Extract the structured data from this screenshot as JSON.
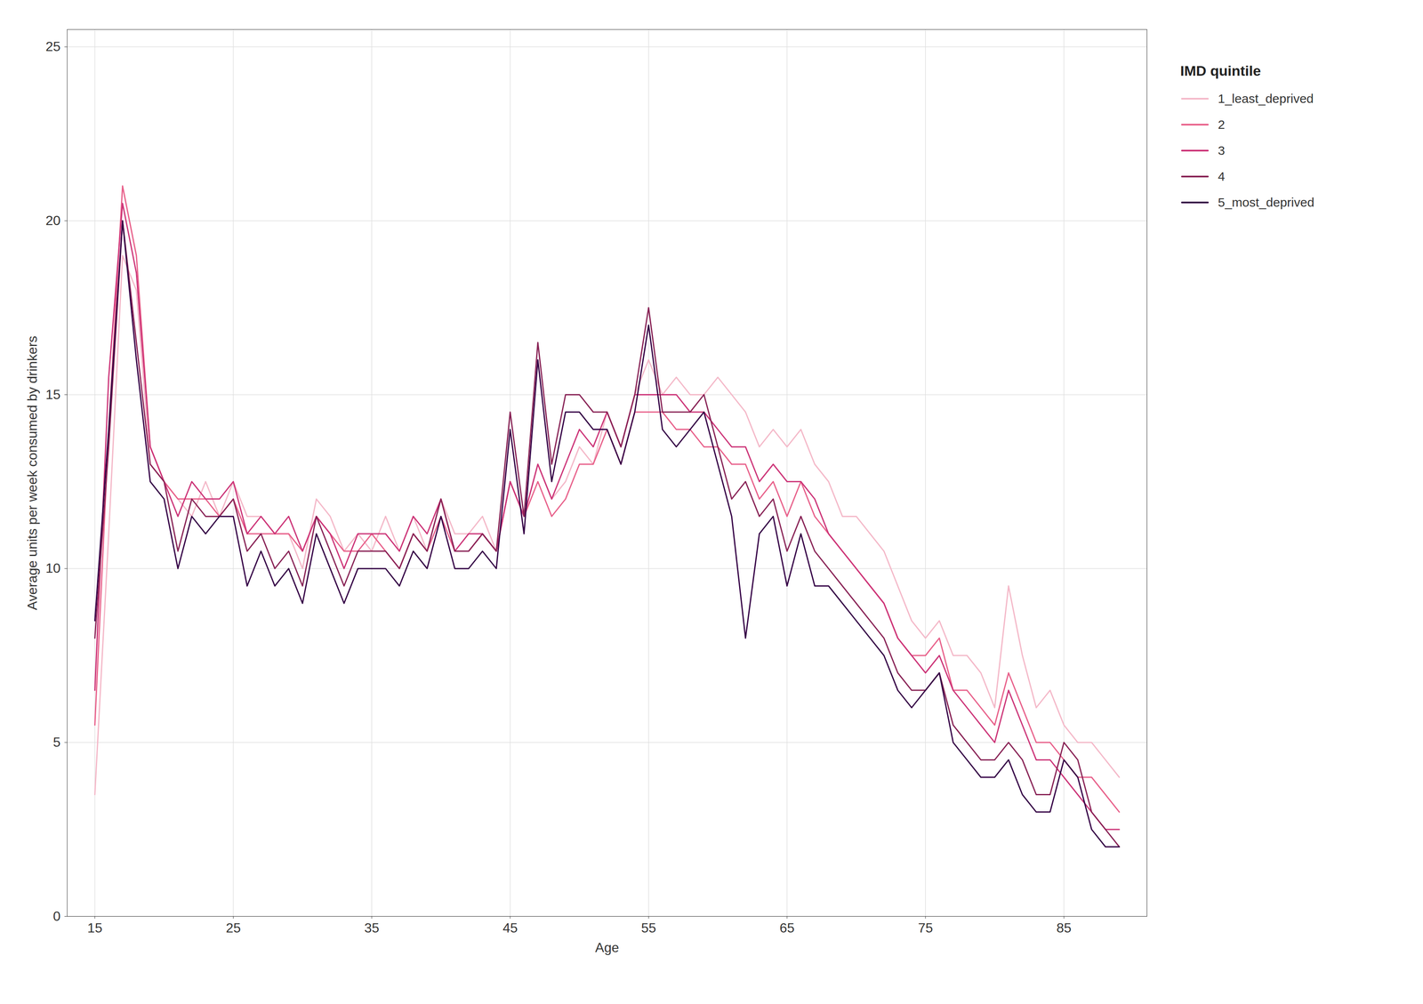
{
  "chart_data": {
    "type": "line",
    "xlabel": "Age",
    "ylabel": "Average units per week consumed by drinkers",
    "legend_title": "IMD quintile",
    "xlim": [
      13,
      91
    ],
    "ylim": [
      0,
      25.5
    ],
    "xticks": [
      15,
      25,
      35,
      45,
      55,
      65,
      75,
      85
    ],
    "yticks": [
      0,
      5,
      10,
      15,
      20,
      25
    ],
    "grid": true,
    "legend": "right",
    "x": [
      15,
      16,
      17,
      18,
      19,
      20,
      21,
      22,
      23,
      24,
      25,
      26,
      27,
      28,
      29,
      30,
      31,
      32,
      33,
      34,
      35,
      36,
      37,
      38,
      39,
      40,
      41,
      42,
      43,
      44,
      45,
      46,
      47,
      48,
      49,
      50,
      51,
      52,
      53,
      54,
      55,
      56,
      57,
      58,
      59,
      60,
      61,
      62,
      63,
      64,
      65,
      66,
      67,
      68,
      69,
      70,
      71,
      72,
      73,
      74,
      75,
      76,
      77,
      78,
      79,
      80,
      81,
      82,
      83,
      84,
      85,
      86,
      87,
      88,
      89
    ],
    "series": [
      {
        "name": "1_least_deprived",
        "color": "#f4b8c8",
        "values": [
          3.5,
          11.0,
          19.0,
          18.0,
          13.0,
          12.5,
          12.0,
          11.5,
          12.5,
          11.5,
          12.5,
          11.5,
          11.5,
          11.0,
          11.0,
          10.0,
          12.0,
          11.5,
          10.5,
          11.0,
          10.5,
          11.5,
          10.5,
          11.5,
          10.5,
          12.0,
          11.0,
          11.0,
          11.5,
          10.5,
          12.5,
          11.5,
          13.0,
          12.0,
          12.5,
          13.5,
          13.0,
          14.5,
          13.5,
          15.0,
          16.0,
          15.0,
          15.5,
          15.0,
          15.0,
          15.5,
          15.0,
          14.5,
          13.5,
          14.0,
          13.5,
          14.0,
          13.0,
          12.5,
          11.5,
          11.5,
          11.0,
          10.5,
          9.5,
          8.5,
          8.0,
          8.5,
          7.5,
          7.5,
          7.0,
          6.0,
          9.5,
          7.5,
          6.0,
          6.5,
          5.5,
          5.0,
          5.0,
          4.5,
          4.0
        ]
      },
      {
        "name": "2",
        "color": "#e8608a",
        "values": [
          5.5,
          14.0,
          21.0,
          19.0,
          13.5,
          12.5,
          12.0,
          12.0,
          12.0,
          11.5,
          12.0,
          11.0,
          11.0,
          11.0,
          11.0,
          10.5,
          11.5,
          11.0,
          10.5,
          10.5,
          11.0,
          10.5,
          10.0,
          11.0,
          10.5,
          11.5,
          10.5,
          10.5,
          11.0,
          10.5,
          12.5,
          11.5,
          12.5,
          11.5,
          12.0,
          13.0,
          13.0,
          14.0,
          13.0,
          14.5,
          14.5,
          14.5,
          14.0,
          14.0,
          13.5,
          13.5,
          13.0,
          13.0,
          12.0,
          12.5,
          11.5,
          12.5,
          11.5,
          11.0,
          10.5,
          10.0,
          9.5,
          9.0,
          8.0,
          7.5,
          7.5,
          8.0,
          6.5,
          6.5,
          6.0,
          5.5,
          7.0,
          6.0,
          5.0,
          5.0,
          4.5,
          4.0,
          4.0,
          3.5,
          3.0
        ]
      },
      {
        "name": "3",
        "color": "#cc3377",
        "values": [
          6.5,
          15.5,
          20.5,
          18.5,
          13.5,
          12.5,
          11.5,
          12.5,
          12.0,
          12.0,
          12.5,
          11.0,
          11.5,
          11.0,
          11.5,
          10.5,
          11.5,
          11.0,
          10.0,
          11.0,
          11.0,
          11.0,
          10.5,
          11.5,
          11.0,
          12.0,
          10.5,
          11.0,
          11.0,
          10.5,
          12.5,
          11.5,
          13.0,
          12.0,
          13.0,
          14.0,
          13.5,
          14.5,
          13.5,
          15.0,
          15.0,
          15.0,
          15.0,
          14.5,
          14.5,
          14.0,
          13.5,
          13.5,
          12.5,
          13.0,
          12.5,
          12.5,
          12.0,
          11.0,
          10.5,
          10.0,
          9.5,
          9.0,
          8.0,
          7.5,
          7.0,
          7.5,
          6.5,
          6.0,
          5.5,
          5.0,
          6.5,
          5.5,
          4.5,
          4.5,
          4.0,
          3.5,
          3.0,
          2.5,
          2.5
        ]
      },
      {
        "name": "4",
        "color": "#882255",
        "values": [
          8.0,
          13.5,
          20.0,
          16.5,
          13.0,
          12.5,
          10.5,
          12.0,
          11.5,
          11.5,
          12.0,
          10.5,
          11.0,
          10.0,
          10.5,
          9.5,
          11.5,
          10.5,
          9.5,
          10.5,
          10.5,
          10.5,
          10.0,
          11.0,
          10.5,
          12.0,
          10.5,
          10.5,
          11.0,
          10.5,
          14.5,
          11.5,
          16.5,
          13.0,
          15.0,
          15.0,
          14.5,
          14.5,
          13.5,
          15.0,
          17.5,
          14.5,
          14.5,
          14.5,
          15.0,
          13.5,
          12.0,
          12.5,
          11.5,
          12.0,
          10.5,
          11.5,
          10.5,
          10.0,
          9.5,
          9.0,
          8.5,
          8.0,
          7.0,
          6.5,
          6.5,
          7.0,
          5.5,
          5.0,
          4.5,
          4.5,
          5.0,
          4.5,
          3.5,
          3.5,
          5.0,
          4.5,
          3.0,
          2.5,
          2.0
        ]
      },
      {
        "name": "5_most_deprived",
        "color": "#330044",
        "values": [
          8.5,
          14.0,
          20.0,
          16.0,
          12.5,
          12.0,
          10.0,
          11.5,
          11.0,
          11.5,
          11.5,
          9.5,
          10.5,
          9.5,
          10.0,
          9.0,
          11.0,
          10.0,
          9.0,
          10.0,
          10.0,
          10.0,
          9.5,
          10.5,
          10.0,
          11.5,
          10.0,
          10.0,
          10.5,
          10.0,
          14.0,
          11.0,
          16.0,
          12.5,
          14.5,
          14.5,
          14.0,
          14.0,
          13.0,
          14.5,
          17.0,
          14.0,
          13.5,
          14.0,
          14.5,
          13.0,
          11.5,
          8.0,
          11.0,
          11.5,
          9.5,
          11.0,
          9.5,
          9.5,
          9.0,
          8.5,
          8.0,
          7.5,
          6.5,
          6.0,
          6.5,
          7.0,
          5.0,
          4.5,
          4.0,
          4.0,
          4.5,
          3.5,
          3.0,
          3.0,
          4.5,
          4.0,
          2.5,
          2.0,
          2.0
        ]
      }
    ]
  }
}
